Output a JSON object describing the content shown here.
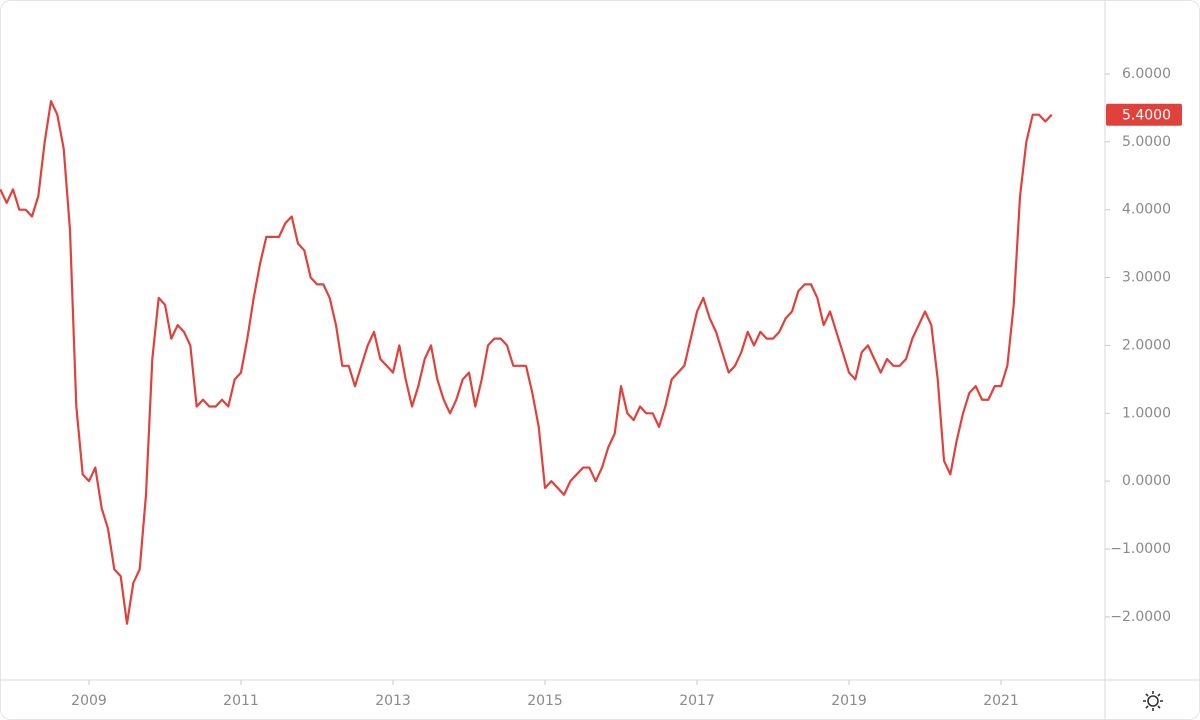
{
  "chart_data": {
    "type": "line",
    "xlim": [
      2007.829,
      2022.368
    ],
    "ylim": [
      -2.93,
      7.09
    ],
    "xticks": [
      2009,
      2011,
      2013,
      2015,
      2017,
      2019,
      2021
    ],
    "yticks": [
      {
        "value": -2,
        "label": "−2.0000"
      },
      {
        "value": -1,
        "label": "−1.0000"
      },
      {
        "value": 0,
        "label": "0.0000"
      },
      {
        "value": 1,
        "label": "1.0000"
      },
      {
        "value": 2,
        "label": "2.0000"
      },
      {
        "value": 3,
        "label": "3.0000"
      },
      {
        "value": 4,
        "label": "4.0000"
      },
      {
        "value": 5,
        "label": "5.0000"
      },
      {
        "value": 6,
        "label": "6.0000"
      }
    ],
    "grid": false,
    "series": [
      {
        "color": "#e0413a",
        "last_value_label": "5.4000",
        "x": [
          2007.833,
          2007.917,
          2008.0,
          2008.083,
          2008.167,
          2008.25,
          2008.333,
          2008.417,
          2008.5,
          2008.583,
          2008.667,
          2008.75,
          2008.833,
          2008.917,
          2009.0,
          2009.083,
          2009.167,
          2009.25,
          2009.333,
          2009.417,
          2009.5,
          2009.583,
          2009.667,
          2009.75,
          2009.833,
          2009.917,
          2010.0,
          2010.083,
          2010.167,
          2010.25,
          2010.333,
          2010.417,
          2010.5,
          2010.583,
          2010.667,
          2010.75,
          2010.833,
          2010.917,
          2011.0,
          2011.083,
          2011.167,
          2011.25,
          2011.333,
          2011.417,
          2011.5,
          2011.583,
          2011.667,
          2011.75,
          2011.833,
          2011.917,
          2012.0,
          2012.083,
          2012.167,
          2012.25,
          2012.333,
          2012.417,
          2012.5,
          2012.583,
          2012.667,
          2012.75,
          2012.833,
          2012.917,
          2013.0,
          2013.083,
          2013.167,
          2013.25,
          2013.333,
          2013.417,
          2013.5,
          2013.583,
          2013.667,
          2013.75,
          2013.833,
          2013.917,
          2014.0,
          2014.083,
          2014.167,
          2014.25,
          2014.333,
          2014.417,
          2014.5,
          2014.583,
          2014.667,
          2014.75,
          2014.833,
          2014.917,
          2015.0,
          2015.083,
          2015.167,
          2015.25,
          2015.333,
          2015.417,
          2015.5,
          2015.583,
          2015.667,
          2015.75,
          2015.833,
          2015.917,
          2016.0,
          2016.083,
          2016.167,
          2016.25,
          2016.333,
          2016.417,
          2016.5,
          2016.583,
          2016.667,
          2016.75,
          2016.833,
          2016.917,
          2017.0,
          2017.083,
          2017.167,
          2017.25,
          2017.333,
          2017.417,
          2017.5,
          2017.583,
          2017.667,
          2017.75,
          2017.833,
          2017.917,
          2018.0,
          2018.083,
          2018.167,
          2018.25,
          2018.333,
          2018.417,
          2018.5,
          2018.583,
          2018.667,
          2018.75,
          2018.833,
          2018.917,
          2019.0,
          2019.083,
          2019.167,
          2019.25,
          2019.333,
          2019.417,
          2019.5,
          2019.583,
          2019.667,
          2019.75,
          2019.833,
          2019.917,
          2020.0,
          2020.083,
          2020.167,
          2020.25,
          2020.333,
          2020.417,
          2020.5,
          2020.583,
          2020.667,
          2020.75,
          2020.833,
          2020.917,
          2021.0,
          2021.083,
          2021.167,
          2021.25,
          2021.333,
          2021.417,
          2021.5,
          2021.583,
          2021.667
        ],
        "values": [
          4.3,
          4.1,
          4.3,
          4.0,
          4.0,
          3.9,
          4.2,
          5.0,
          5.6,
          5.4,
          4.9,
          3.7,
          1.1,
          0.1,
          0.0,
          0.2,
          -0.4,
          -0.7,
          -1.3,
          -1.4,
          -2.1,
          -1.5,
          -1.3,
          -0.2,
          1.8,
          2.7,
          2.6,
          2.1,
          2.3,
          2.2,
          2.0,
          1.1,
          1.2,
          1.1,
          1.1,
          1.2,
          1.1,
          1.5,
          1.6,
          2.1,
          2.7,
          3.2,
          3.6,
          3.6,
          3.6,
          3.8,
          3.9,
          3.5,
          3.4,
          3.0,
          2.9,
          2.9,
          2.7,
          2.3,
          1.7,
          1.7,
          1.4,
          1.7,
          2.0,
          2.2,
          1.8,
          1.7,
          1.6,
          2.0,
          1.5,
          1.1,
          1.4,
          1.8,
          2.0,
          1.5,
          1.2,
          1.0,
          1.2,
          1.5,
          1.6,
          1.1,
          1.5,
          2.0,
          2.1,
          2.1,
          2.0,
          1.7,
          1.7,
          1.7,
          1.3,
          0.8,
          -0.1,
          0.0,
          -0.1,
          -0.2,
          0.0,
          0.1,
          0.2,
          0.2,
          0.0,
          0.2,
          0.5,
          0.7,
          1.4,
          1.0,
          0.9,
          1.1,
          1.0,
          1.0,
          0.8,
          1.1,
          1.5,
          1.6,
          1.7,
          2.1,
          2.5,
          2.7,
          2.4,
          2.2,
          1.9,
          1.6,
          1.7,
          1.9,
          2.2,
          2.0,
          2.2,
          2.1,
          2.1,
          2.2,
          2.4,
          2.5,
          2.8,
          2.9,
          2.9,
          2.7,
          2.3,
          2.5,
          2.2,
          1.9,
          1.6,
          1.5,
          1.9,
          2.0,
          1.8,
          1.6,
          1.8,
          1.7,
          1.7,
          1.8,
          2.1,
          2.3,
          2.5,
          2.3,
          1.5,
          0.3,
          0.1,
          0.6,
          1.0,
          1.3,
          1.4,
          1.2,
          1.2,
          1.4,
          1.4,
          1.7,
          2.6,
          4.2,
          5.0,
          5.4,
          5.4,
          5.3,
          5.4
        ]
      }
    ]
  }
}
